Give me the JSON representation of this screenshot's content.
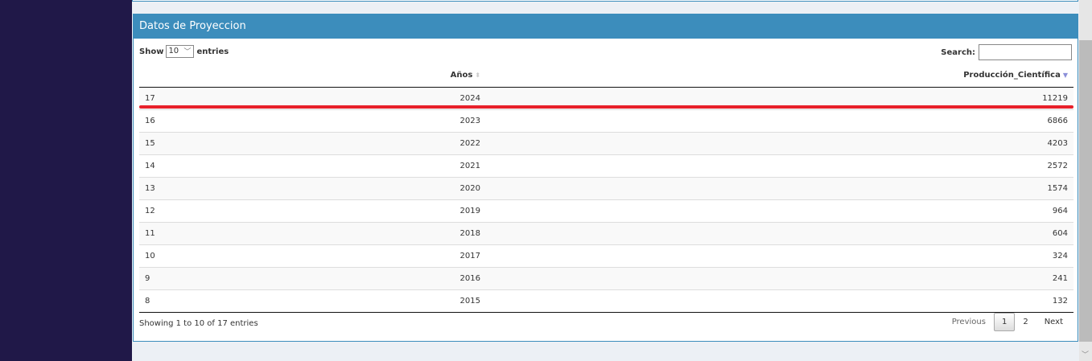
{
  "box": {
    "title": "Datos de Proyeccion"
  },
  "length": {
    "show": "Show",
    "value": "10",
    "entries": "entries"
  },
  "search": {
    "label": "Search:",
    "value": ""
  },
  "table": {
    "headers": [
      "",
      "Años",
      "Producción_Científica"
    ],
    "sort_column": "Producción_Científica",
    "sort_direction": "descending",
    "rows": [
      [
        "17",
        "2024",
        "11219"
      ],
      [
        "16",
        "2023",
        "6866"
      ],
      [
        "15",
        "2022",
        "4203"
      ],
      [
        "14",
        "2021",
        "2572"
      ],
      [
        "13",
        "2020",
        "1574"
      ],
      [
        "12",
        "2019",
        "964"
      ],
      [
        "11",
        "2018",
        "604"
      ],
      [
        "10",
        "2017",
        "324"
      ],
      [
        "9",
        "2016",
        "241"
      ],
      [
        "8",
        "2015",
        "132"
      ]
    ]
  },
  "info": "Showing 1 to 10 of 17 entries",
  "pager": {
    "previous": "Previous",
    "pages": [
      "1",
      "2"
    ],
    "current": "1",
    "next": "Next"
  },
  "colors": {
    "sidebar": "#201848",
    "header": "#3c8dbc",
    "highlight": "#e8202a"
  }
}
